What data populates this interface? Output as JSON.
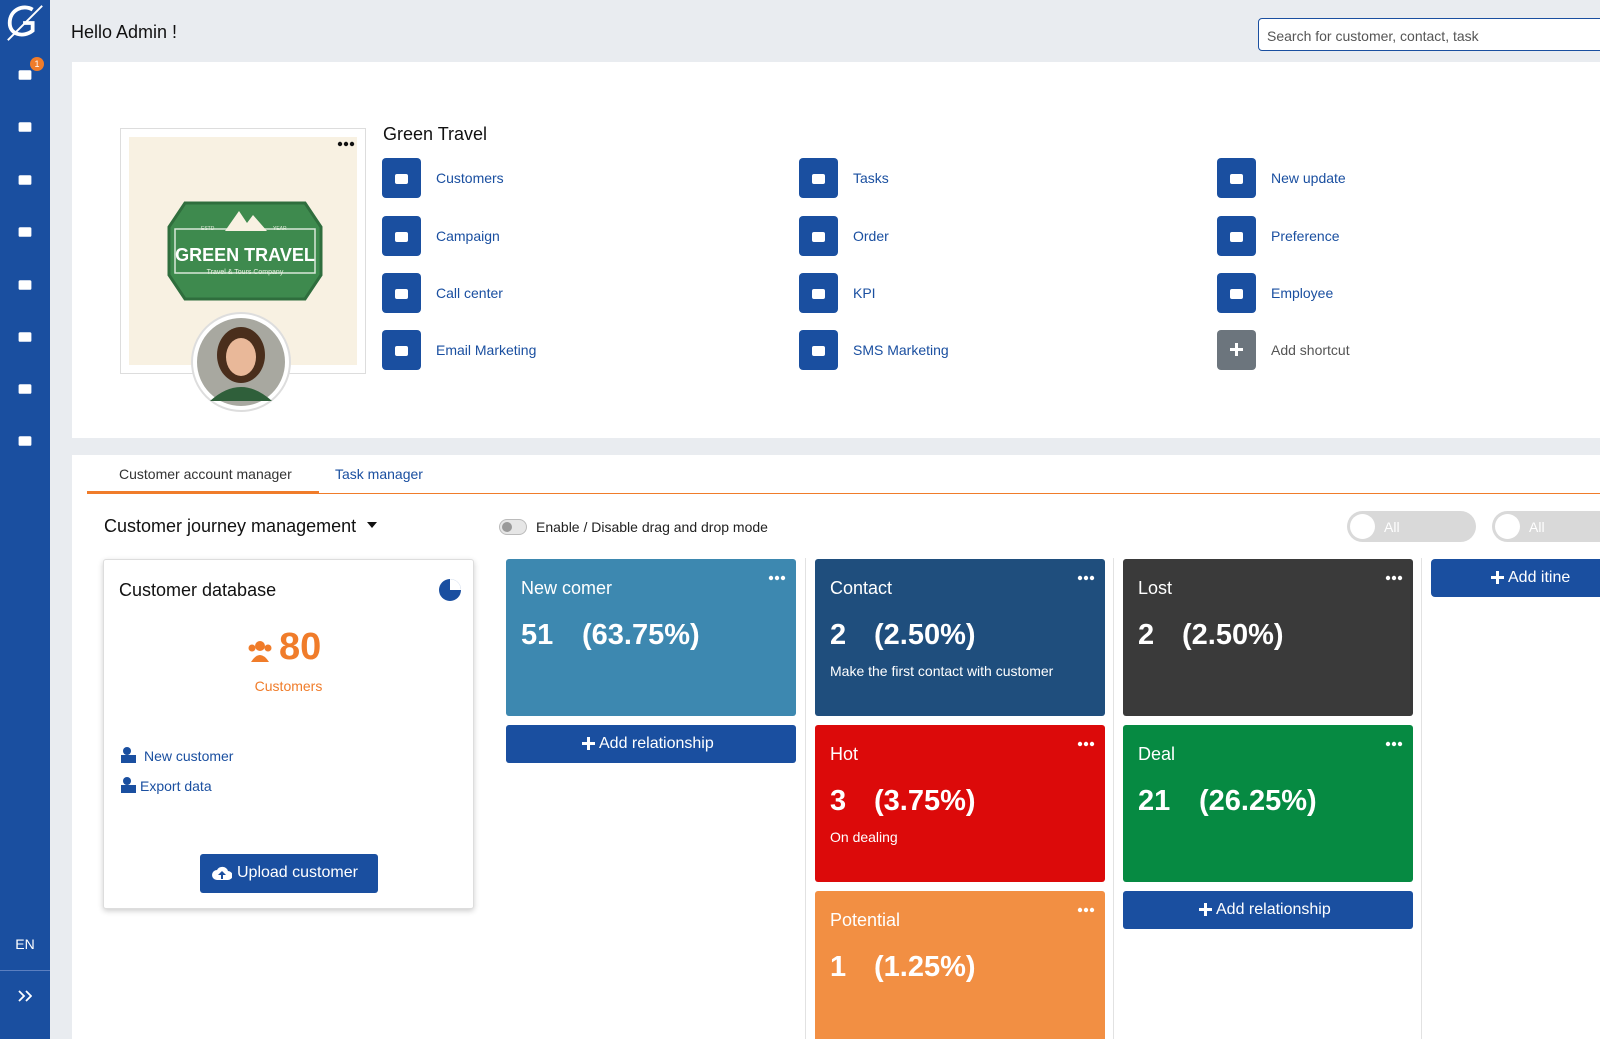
{
  "sidebar": {
    "badge": "1",
    "language": "EN"
  },
  "header": {
    "greeting": "Hello Admin !",
    "search_placeholder": "Search for customer, contact, task"
  },
  "profile": {
    "company": "Green Travel",
    "logo": {
      "estd": "ESTD",
      "year": "YEAR",
      "name": "GREEN TRAVEL",
      "tagline": "Travel & Tours Company"
    }
  },
  "shortcuts": [
    "Customers",
    "Tasks",
    "New update",
    "Campaign",
    "Order",
    "Preference",
    "Call center",
    "KPI",
    "Employee",
    "Email Marketing",
    "SMS Marketing",
    "Add shortcut"
  ],
  "tabs": [
    "Customer account manager",
    "Task manager"
  ],
  "journey": {
    "title": "Customer journey management",
    "toggle_label": "Enable / Disable drag and drop mode",
    "filters": [
      "All",
      "All"
    ],
    "add_button": "Add itine",
    "add_relationship": "Add relationship"
  },
  "database": {
    "title": "Customer database",
    "count": 80,
    "count_label": "Customers",
    "links": [
      "New customer",
      "Export data"
    ],
    "upload": "Upload customer"
  },
  "stages": [
    {
      "name": "New comer",
      "count": 51,
      "percent": "(63.75%)",
      "color": "#3d88b0"
    },
    {
      "name": "Contact",
      "count": 2,
      "percent": "(2.50%)",
      "note": "Make the first contact with customer",
      "color": "#1f4e7d"
    },
    {
      "name": "Lost",
      "count": 2,
      "percent": "(2.50%)",
      "color": "#3a3a3a"
    },
    {
      "name": "Hot",
      "count": 3,
      "percent": "(3.75%)",
      "note": "On dealing",
      "color": "#dc0a0a"
    },
    {
      "name": "Deal",
      "count": 21,
      "percent": "(26.25%)",
      "color": "#068a42"
    },
    {
      "name": "Potential",
      "count": 1,
      "percent": "(1.25%)",
      "color": "#f28f43"
    }
  ]
}
